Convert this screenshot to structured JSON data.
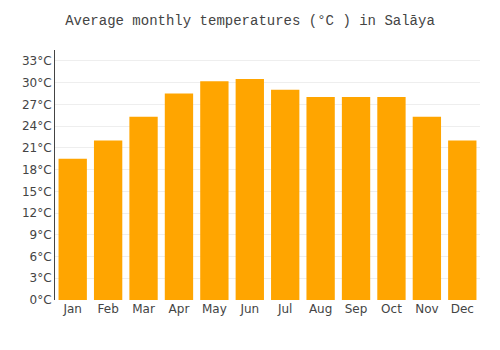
{
  "chart_data": {
    "type": "bar",
    "title": "Average monthly temperatures (°C ) in Salāya",
    "categories": [
      "Jan",
      "Feb",
      "Mar",
      "Apr",
      "May",
      "Jun",
      "Jul",
      "Aug",
      "Sep",
      "Oct",
      "Nov",
      "Dec"
    ],
    "values": [
      19.5,
      22.0,
      25.3,
      28.5,
      30.2,
      30.5,
      29.0,
      28.0,
      28.0,
      28.0,
      25.3,
      22.0
    ],
    "color": "#FFA500",
    "ylim": [
      0,
      34.5
    ],
    "yticks": [
      {
        "value": 0,
        "label": "0°C"
      },
      {
        "value": 3,
        "label": "3°C"
      },
      {
        "value": 6,
        "label": "6°C"
      },
      {
        "value": 9,
        "label": "9°C"
      },
      {
        "value": 12,
        "label": "12°C"
      },
      {
        "value": 15,
        "label": "15°C"
      },
      {
        "value": 18,
        "label": "18°C"
      },
      {
        "value": 21,
        "label": "21°C"
      },
      {
        "value": 24,
        "label": "24°C"
      },
      {
        "value": 27,
        "label": "27°C"
      },
      {
        "value": 30,
        "label": "30°C"
      },
      {
        "value": 33,
        "label": "33°C"
      }
    ],
    "grid": true
  }
}
